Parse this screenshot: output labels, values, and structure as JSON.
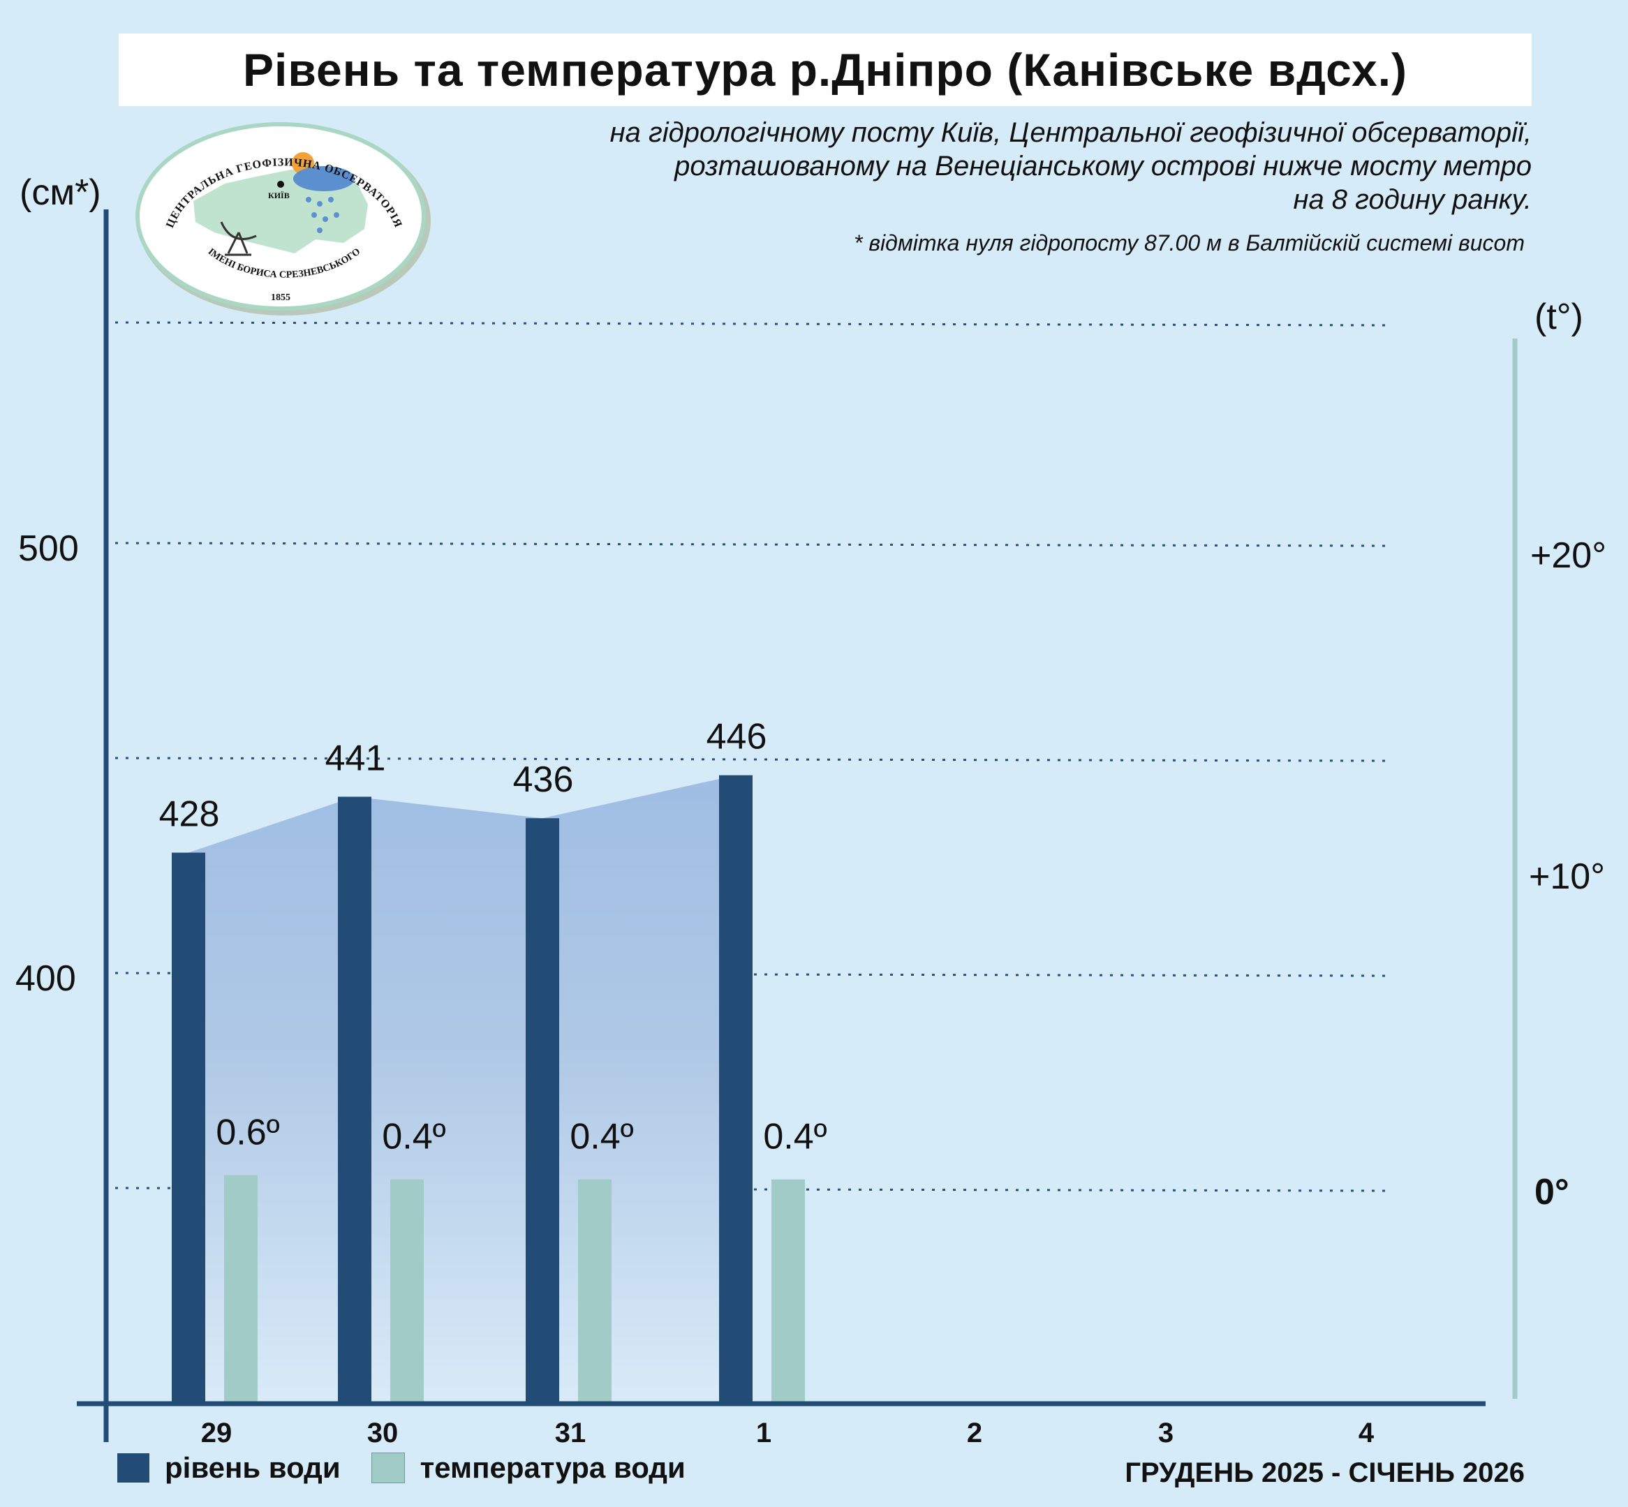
{
  "header": {
    "title": "Рівень та температура р.Дніпро (Канівське вдсх.)",
    "subtitle_lines": [
      "на гідрологічному посту Київ, Центральної геофізичної обсерваторії,",
      "розташованому на Венеціанському острові нижче мосту метро",
      "на 8 годину ранку."
    ],
    "note": "* відмітка нуля гідропосту 87.00 м в Балтійскій системі висот"
  },
  "logo": {
    "text_top": "ЦЕНТРАЛЬНА ГЕОФІЗИЧНА ОБСЕРВАТОРІЯ",
    "text_bottom": "ІМЕНІ БОРИСА СРЕЗНЕВСЬКОГО",
    "city": "КИЇВ",
    "year": "1855"
  },
  "axes": {
    "left_unit": "(см*)",
    "right_unit": "(t°)",
    "left_ticks": [
      "500",
      "400"
    ],
    "right_ticks": [
      "+20°",
      "+10°",
      "0°"
    ]
  },
  "legend": {
    "level_label": "рівень води",
    "temp_label": "температура води",
    "level_color": "#224b76",
    "temp_color": "#a0cbc7"
  },
  "period_label": "ГРУДЕНЬ 2025 - СІЧЕНЬ 2026",
  "chart_data": {
    "type": "bar",
    "categories": [
      "29",
      "30",
      "31",
      "1",
      "2",
      "3",
      "4"
    ],
    "series": [
      {
        "name": "рівень води",
        "axis": "left",
        "unit": "см",
        "values": [
          428,
          441,
          436,
          446,
          null,
          null,
          null
        ],
        "labels": [
          "428",
          "441",
          "436",
          "446",
          "",
          "",
          ""
        ],
        "color": "#224b76"
      },
      {
        "name": "температура води",
        "axis": "right",
        "unit": "°C",
        "values": [
          0.6,
          0.4,
          0.4,
          0.4,
          null,
          null,
          null
        ],
        "labels": [
          "0.6º",
          "0.4º",
          "0.4º",
          "0.4º",
          "",
          "",
          ""
        ],
        "color": "#a0cbc7"
      }
    ],
    "left_axis": {
      "ticks": [
        400,
        500
      ],
      "range": [
        300,
        550
      ]
    },
    "right_axis": {
      "ticks": [
        0,
        10,
        20
      ],
      "range": [
        -10,
        25
      ]
    },
    "grid": "dotted horizontal",
    "area_fill_under_level": true,
    "colors": {
      "background": "#d6ebf8",
      "axis": "#224b76",
      "right_axis": "#a0cbc7",
      "grid": "#2b4f7a"
    }
  }
}
